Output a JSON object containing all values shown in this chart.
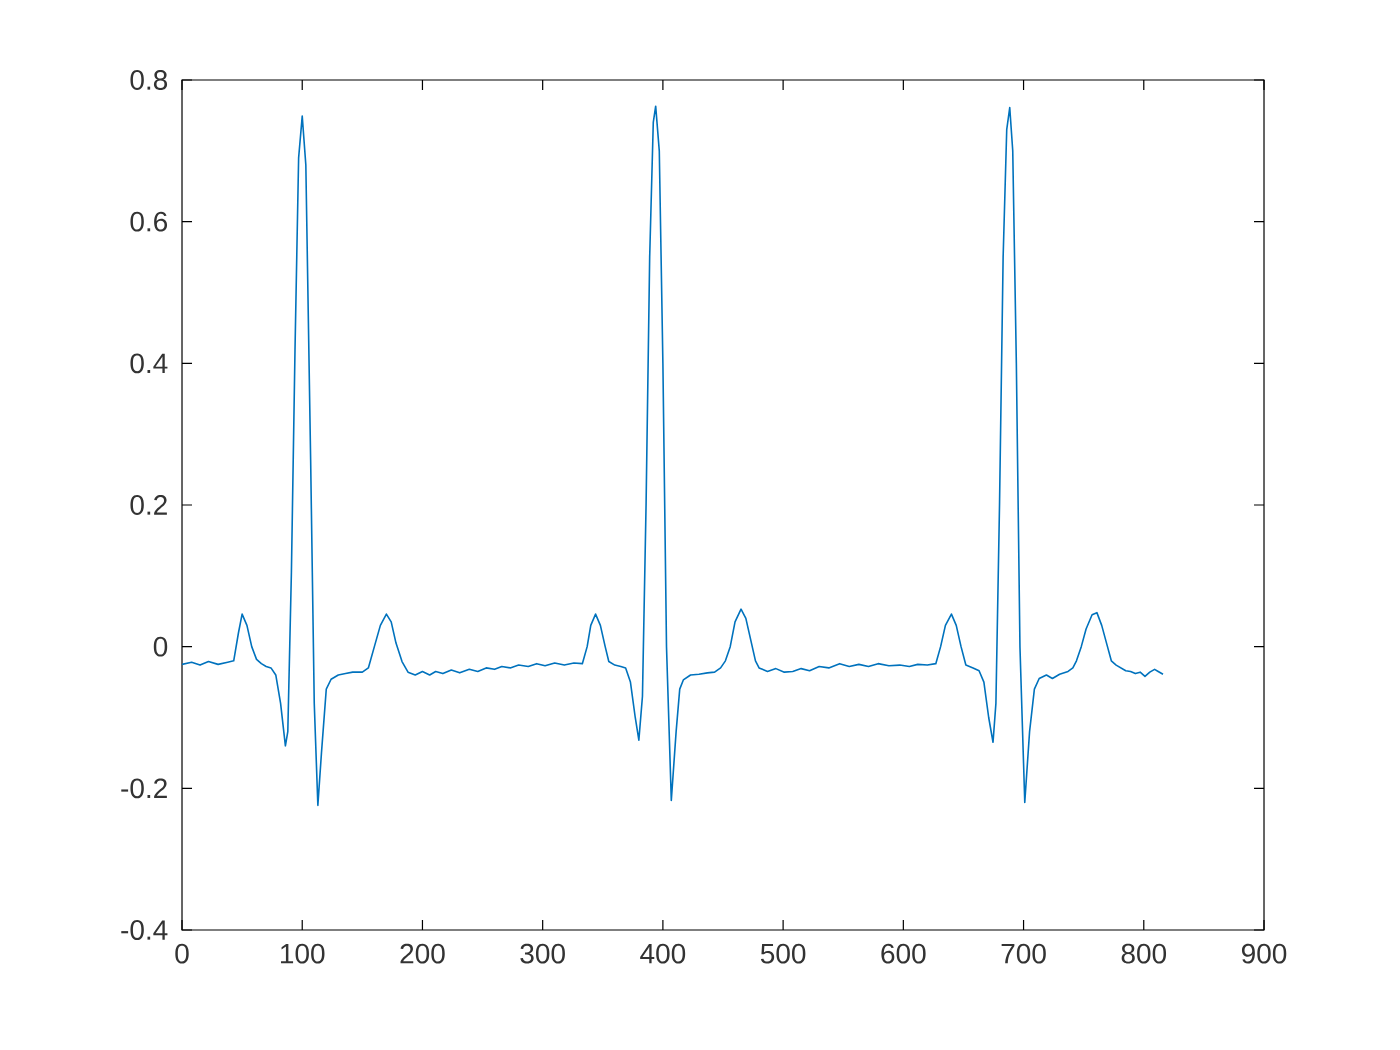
{
  "chart_data": {
    "type": "line",
    "x": [
      0,
      8,
      15,
      22,
      30,
      38,
      43,
      47,
      50,
      54,
      58,
      62,
      66,
      70,
      74,
      78,
      82,
      86,
      88,
      91,
      94,
      97,
      100,
      103,
      107,
      110,
      113,
      116,
      120,
      124,
      130,
      136,
      142,
      150,
      155,
      160,
      165,
      170,
      174,
      178,
      183,
      188,
      194,
      200,
      206,
      211,
      217,
      224,
      231,
      239,
      246,
      253,
      260,
      266,
      273,
      280,
      288,
      295,
      302,
      310,
      318,
      326,
      333,
      337,
      340,
      344,
      348,
      352,
      355,
      360,
      365,
      369,
      373,
      377,
      380,
      383,
      386,
      389,
      392,
      394,
      397,
      400,
      403,
      407,
      411,
      414,
      417,
      423,
      430,
      437,
      443,
      448,
      452,
      456,
      460,
      465,
      469,
      473,
      477,
      480,
      487,
      494,
      501,
      508,
      515,
      522,
      530,
      538,
      547,
      555,
      563,
      571,
      579,
      588,
      597,
      605,
      612,
      620,
      627,
      631,
      635,
      640,
      644,
      648,
      652,
      658,
      663,
      667,
      671,
      674.6,
      677,
      680,
      683,
      686,
      688.5,
      691,
      694,
      697,
      701,
      705,
      709,
      713,
      719,
      724,
      730,
      737,
      741,
      744,
      748,
      752,
      757,
      761,
      765,
      769,
      773,
      777,
      781,
      785,
      789,
      793,
      797,
      801,
      805,
      809,
      812,
      816
    ],
    "series": [
      {
        "color": "#0072bd",
        "values": [
          -0.025,
          -0.022,
          -0.026,
          -0.021,
          -0.025,
          -0.022,
          -0.02,
          0.02,
          0.046,
          0.03,
          0.0,
          -0.018,
          -0.024,
          -0.028,
          -0.03,
          -0.04,
          -0.08,
          -0.14,
          -0.12,
          0.105,
          0.42,
          0.69,
          0.749,
          0.68,
          0.264,
          -0.08,
          -0.224,
          -0.15,
          -0.06,
          -0.046,
          -0.04,
          -0.038,
          -0.036,
          -0.036,
          -0.03,
          0.0,
          0.03,
          0.046,
          0.035,
          0.005,
          -0.021,
          -0.036,
          -0.04,
          -0.035,
          -0.04,
          -0.035,
          -0.038,
          -0.033,
          -0.037,
          -0.032,
          -0.035,
          -0.03,
          -0.032,
          -0.028,
          -0.03,
          -0.026,
          -0.028,
          -0.024,
          -0.027,
          -0.023,
          -0.026,
          -0.023,
          -0.024,
          0.0,
          0.03,
          0.046,
          0.03,
          0.0,
          -0.021,
          -0.026,
          -0.028,
          -0.03,
          -0.05,
          -0.1,
          -0.132,
          -0.07,
          0.2,
          0.55,
          0.74,
          0.763,
          0.7,
          0.4,
          0.0,
          -0.217,
          -0.12,
          -0.06,
          -0.047,
          -0.04,
          -0.039,
          -0.037,
          -0.036,
          -0.03,
          -0.02,
          0.0,
          0.035,
          0.053,
          0.04,
          0.01,
          -0.02,
          -0.03,
          -0.035,
          -0.031,
          -0.036,
          -0.035,
          -0.031,
          -0.034,
          -0.028,
          -0.03,
          -0.024,
          -0.028,
          -0.025,
          -0.028,
          -0.024,
          -0.027,
          -0.026,
          -0.028,
          -0.025,
          -0.026,
          -0.024,
          0.0,
          0.03,
          0.046,
          0.03,
          0.0,
          -0.026,
          -0.03,
          -0.034,
          -0.05,
          -0.1,
          -0.135,
          -0.08,
          0.2,
          0.55,
          0.73,
          0.761,
          0.7,
          0.4,
          0.0,
          -0.22,
          -0.12,
          -0.06,
          -0.045,
          -0.04,
          -0.045,
          -0.039,
          -0.035,
          -0.03,
          -0.02,
          0.0,
          0.025,
          0.045,
          0.048,
          0.03,
          0.005,
          -0.02,
          -0.026,
          -0.03,
          -0.034,
          -0.035,
          -0.038,
          -0.036,
          -0.042,
          -0.036,
          -0.032,
          -0.035,
          -0.039
        ]
      }
    ],
    "xlim": [
      0,
      900
    ],
    "ylim": [
      -0.4,
      0.8
    ],
    "xticks": [
      0,
      100,
      200,
      300,
      400,
      500,
      600,
      700,
      800,
      900
    ],
    "yticks": [
      -0.4,
      -0.2,
      0,
      0.2,
      0.4,
      0.6,
      0.8
    ]
  }
}
